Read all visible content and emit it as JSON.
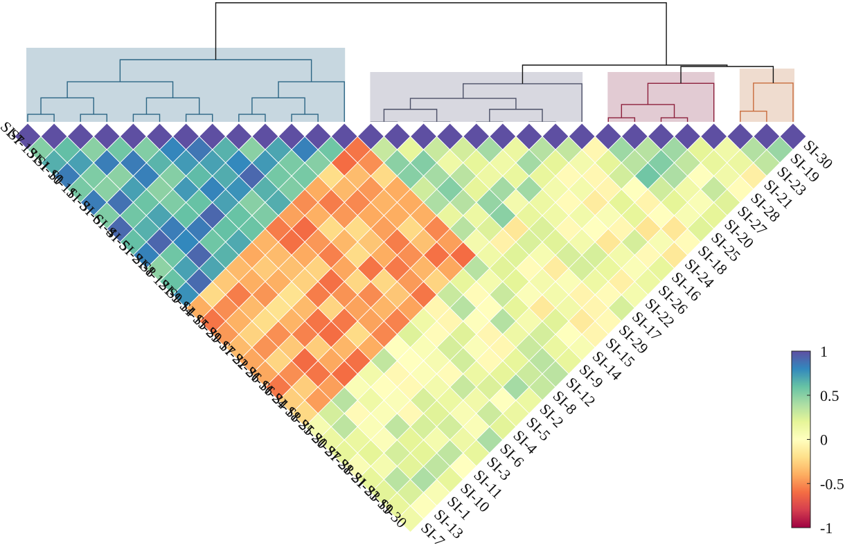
{
  "chart_data": {
    "type": "heatmap",
    "subtype": "triangular-correlation-with-dendrogram",
    "labels": [
      "SI-7",
      "SI-13",
      "SI-1",
      "SI-10",
      "SI-11",
      "SI-3",
      "SI-6",
      "SI-4",
      "SI-5",
      "SI-2",
      "SI-8",
      "SI-12",
      "SI-9",
      "SI-14",
      "SI-15",
      "SI-29",
      "SI-17",
      "SI-22",
      "SI-26",
      "SI-16",
      "SI-24",
      "SI-18",
      "SI-25",
      "SI-20",
      "SI-27",
      "SI-28",
      "SI-21",
      "SI-23",
      "SI-19",
      "SI-30"
    ],
    "groups": [
      {
        "members": [
          0,
          12
        ],
        "color": "#c7d7e0",
        "line": "#2b6584"
      },
      {
        "members": [
          13,
          21
        ],
        "color": "#d8d8e0",
        "line": "#4b4f66"
      },
      {
        "members": [
          22,
          26
        ],
        "color": "#e2cbd3",
        "line": "#8c1f3b"
      },
      {
        "members": [
          27,
          29
        ],
        "color": "#efdccf",
        "line": "#c86b3c"
      }
    ],
    "colorbar": {
      "ticks": [
        "1",
        "0.5",
        "0",
        "-0.5",
        "-1"
      ],
      "tick_values": [
        1,
        0.5,
        0,
        -0.5,
        -1
      ],
      "range": [
        -1,
        1
      ],
      "colormap": "Spectral"
    },
    "value_model": {
      "note": "estimated correlation by cluster block",
      "block_means": [
        [
          0.7,
          -0.4,
          0.15,
          0.2
        ],
        [
          -0.4,
          0.3,
          0.05,
          0.05
        ],
        [
          0.15,
          0.05,
          0.35,
          0.1
        ],
        [
          0.2,
          0.05,
          0.1,
          0.45
        ]
      ],
      "spread": 0.22
    }
  }
}
